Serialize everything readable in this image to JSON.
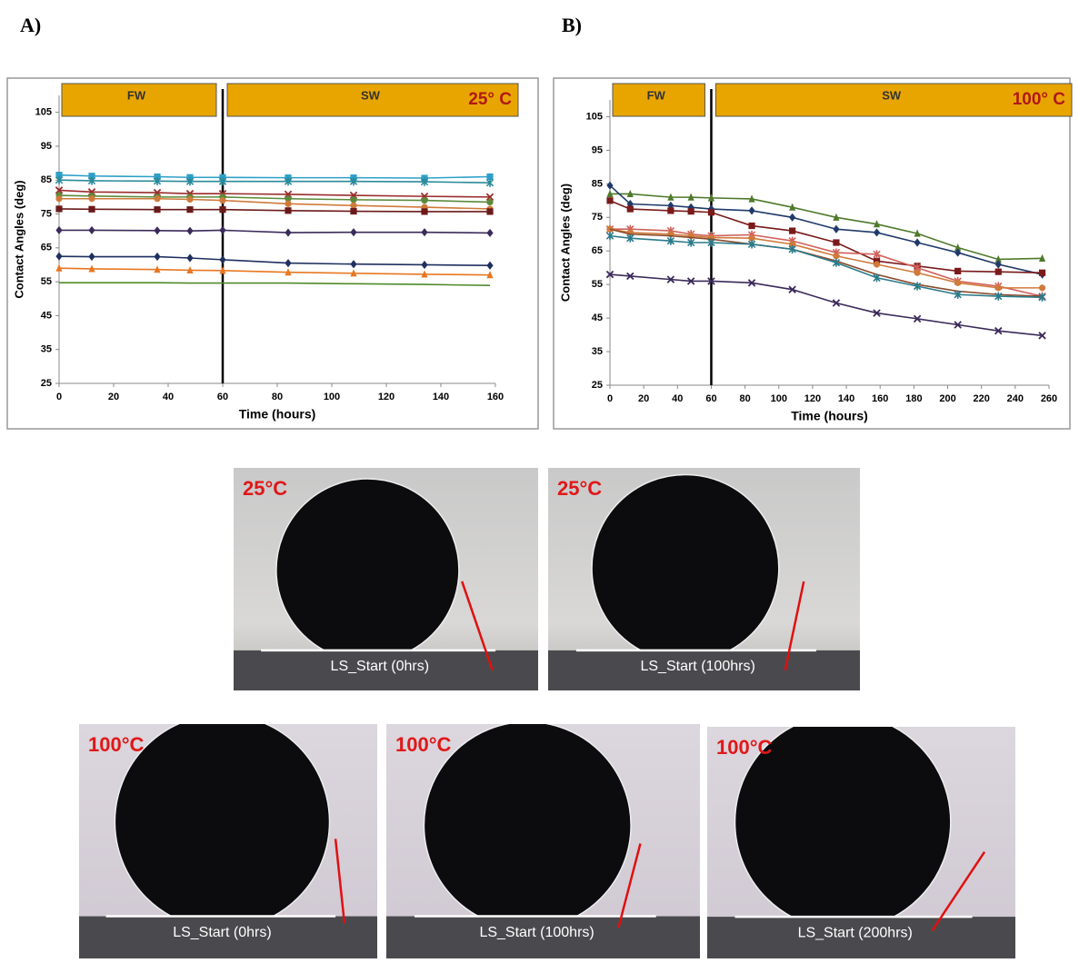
{
  "panel_labels": [
    "A)",
    "B)"
  ],
  "chart_data": [
    {
      "type": "line",
      "xlabel": "Time (hours)",
      "ylabel": "Contact Angles (deg)",
      "x": [
        0,
        12,
        36,
        48,
        60,
        84,
        108,
        134,
        158
      ],
      "xlim": [
        0,
        160
      ],
      "xticks": [
        0,
        20,
        40,
        60,
        80,
        100,
        120,
        140,
        160
      ],
      "ylim": [
        25,
        110
      ],
      "yticks": [
        25,
        35,
        45,
        55,
        65,
        75,
        85,
        95,
        105
      ],
      "divider_x": 60,
      "phases": [
        "FW",
        "SW"
      ],
      "temperature": "25° C",
      "series": [
        {
          "marker": "square",
          "color": "#2e9fc9",
          "values": [
            86.5,
            86.2,
            86,
            85.8,
            85.8,
            85.7,
            85.7,
            85.6,
            86
          ]
        },
        {
          "marker": "star",
          "color": "#2a8a9a",
          "values": [
            85,
            84.8,
            84.7,
            84.6,
            84.6,
            84.6,
            84.6,
            84.5,
            84.2
          ]
        },
        {
          "marker": "x",
          "color": "#9b2c2c",
          "values": [
            82,
            81.5,
            81.3,
            81,
            81,
            80.8,
            80.5,
            80.2,
            80
          ]
        },
        {
          "marker": "circle",
          "color": "#5b8a3a",
          "values": [
            80.5,
            80.3,
            80,
            80,
            80,
            79.5,
            79.2,
            79,
            78.5
          ]
        },
        {
          "marker": "circle",
          "color": "#d07a3a",
          "values": [
            79.5,
            79.5,
            79.5,
            79.3,
            79,
            78,
            77.5,
            77,
            76.5
          ]
        },
        {
          "marker": "square",
          "color": "#6b1a1a",
          "values": [
            76.5,
            76.4,
            76.3,
            76.3,
            76.3,
            76,
            75.8,
            75.7,
            75.7
          ]
        },
        {
          "marker": "diamond",
          "color": "#3b2a5a",
          "values": [
            70.2,
            70.2,
            70.1,
            70,
            70.2,
            69.5,
            69.6,
            69.6,
            69.4
          ]
        },
        {
          "marker": "diamond",
          "color": "#1f2f5f",
          "values": [
            62.5,
            62.4,
            62.4,
            62,
            61.5,
            60.5,
            60.2,
            60,
            59.8
          ]
        },
        {
          "marker": "triangle",
          "color": "#e87722",
          "values": [
            59,
            58.8,
            58.6,
            58.4,
            58.3,
            57.8,
            57.5,
            57.2,
            57
          ]
        },
        {
          "marker": "none",
          "color": "#4f8a2a",
          "values": [
            54.7,
            54.7,
            54.7,
            54.6,
            54.6,
            54.6,
            54.4,
            54.2,
            53.9
          ]
        }
      ]
    },
    {
      "type": "line",
      "xlabel": "Time (hours)",
      "ylabel": "Contact Angles (deg)",
      "x": [
        0,
        12,
        36,
        48,
        60,
        84,
        108,
        134,
        158,
        182,
        206,
        230,
        256
      ],
      "xlim": [
        0,
        260
      ],
      "xticks": [
        0,
        20,
        40,
        60,
        80,
        100,
        120,
        140,
        160,
        180,
        200,
        220,
        240,
        260
      ],
      "ylim": [
        25,
        110
      ],
      "yticks": [
        25,
        35,
        45,
        55,
        65,
        75,
        85,
        95,
        105
      ],
      "divider_x": 60,
      "phases": [
        "FW",
        "SW"
      ],
      "temperature": "100° C",
      "series": [
        {
          "marker": "triangle",
          "color": "#4f7a2a",
          "values": [
            82,
            82,
            81,
            81,
            80.8,
            80.5,
            78,
            75,
            73,
            70.2,
            66,
            62.5,
            62.8
          ]
        },
        {
          "marker": "diamond",
          "color": "#1f3a6a",
          "values": [
            84.5,
            79,
            78.5,
            78,
            77.5,
            77,
            75,
            71.5,
            70.5,
            67.5,
            64.5,
            61,
            58
          ]
        },
        {
          "marker": "square",
          "color": "#7a1a1a",
          "values": [
            80,
            77.5,
            77,
            76.8,
            76.5,
            72.5,
            71,
            67.5,
            62,
            60.5,
            59,
            58.8,
            58.5
          ]
        },
        {
          "marker": "star",
          "color": "#d0605a",
          "values": [
            71.5,
            71.5,
            71,
            70,
            69.5,
            69.8,
            68,
            64.5,
            64,
            60,
            56,
            54.5,
            51.5
          ]
        },
        {
          "marker": "circle",
          "color": "#d07a3a",
          "values": [
            71.5,
            70.5,
            70,
            69.5,
            69,
            68.8,
            67,
            63.5,
            61,
            58.5,
            55.5,
            54,
            54
          ]
        },
        {
          "marker": "none",
          "color": "#8a4a2a",
          "values": [
            71.5,
            70,
            69.5,
            69,
            68.5,
            67,
            65.5,
            62,
            58,
            55,
            53,
            52,
            51.5
          ]
        },
        {
          "marker": "star",
          "color": "#2a7a8a",
          "values": [
            69.5,
            68.8,
            68,
            67.5,
            67.5,
            67,
            65.5,
            61.5,
            57,
            54.5,
            52,
            51.5,
            51.2
          ]
        },
        {
          "marker": "x",
          "color": "#3b2a5a",
          "values": [
            58,
            57.5,
            56.5,
            56,
            56,
            55.5,
            53.5,
            49.5,
            46.5,
            44.8,
            43,
            41.2,
            39.8
          ]
        }
      ]
    }
  ],
  "photos": [
    {
      "temperature": "25°C",
      "caption": "LS_Start (0hrs)"
    },
    {
      "temperature": "25°C",
      "caption": "LS_Start (100hrs)"
    },
    {
      "temperature": "100°C",
      "caption": "LS_Start (0hrs)"
    },
    {
      "temperature": "100°C",
      "caption": "LS_Start (100hrs)"
    },
    {
      "temperature": "100°C",
      "caption": "LS_Start (200hrs)"
    }
  ]
}
